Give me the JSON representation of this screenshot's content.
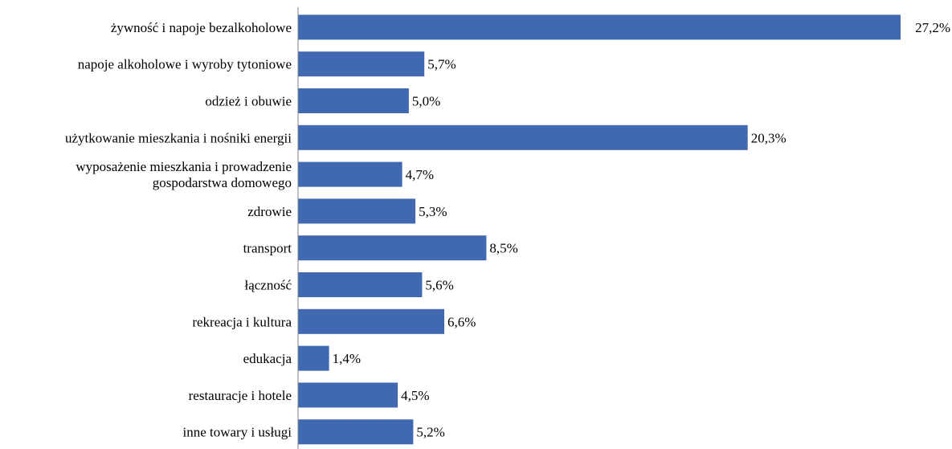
{
  "chart_data": {
    "type": "bar",
    "orientation": "horizontal",
    "categories": [
      [
        "żywność i napoje bezalkoholowe"
      ],
      [
        "napoje alkoholowe i wyroby tytoniowe"
      ],
      [
        "odzież i obuwie"
      ],
      [
        "użytkowanie mieszkania i nośniki energii"
      ],
      [
        "wyposażenie mieszkania i prowadzenie",
        "gospodarstwa domowego"
      ],
      [
        "zdrowie"
      ],
      [
        "transport"
      ],
      [
        "łączność"
      ],
      [
        "rekreacja i kultura"
      ],
      [
        "edukacja"
      ],
      [
        "restauracje i hotele"
      ],
      [
        "inne towary i usługi"
      ]
    ],
    "values": [
      27.2,
      5.7,
      5.0,
      20.3,
      4.7,
      5.3,
      8.5,
      5.6,
      6.6,
      1.4,
      4.5,
      5.2
    ],
    "value_labels": [
      "27,2%",
      "5,7%",
      "5,0%",
      "20,3%",
      "4,7%",
      "5,3%",
      "8,5%",
      "5,6%",
      "6,6%",
      "1,4%",
      "4,5%",
      "5,2%"
    ],
    "xlim": [
      0,
      27.2
    ],
    "grid": false,
    "bar_color": "#4169B2",
    "axis_color": "#808080",
    "title": "",
    "xlabel": "",
    "ylabel": ""
  }
}
